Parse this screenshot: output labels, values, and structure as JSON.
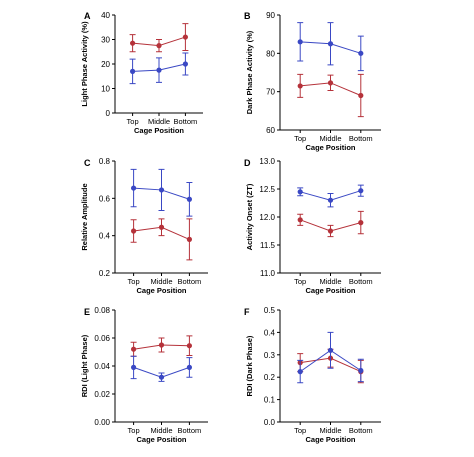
{
  "colors": {
    "red": "#b5323a",
    "blue": "#3a48c4"
  },
  "chart_data": [
    {
      "panel": "A",
      "type": "line",
      "categories": [
        "Top",
        "Middle",
        "Bottom"
      ],
      "xlabel": "Cage Position",
      "ylabel": "Light Phase Activity (%)",
      "ylim": [
        0,
        40
      ],
      "yticks": [
        0,
        10,
        20,
        30,
        40
      ],
      "ytick_labels": [
        "0",
        "10",
        "20",
        "30",
        "40"
      ],
      "series": [
        {
          "color": "red",
          "values": [
            28.5,
            27.5,
            31
          ],
          "err": [
            3.5,
            2.5,
            5.5
          ]
        },
        {
          "color": "blue",
          "values": [
            17,
            17.5,
            20
          ],
          "err": [
            5,
            5,
            4.5
          ]
        }
      ]
    },
    {
      "panel": "B",
      "type": "line",
      "categories": [
        "Top",
        "Middle",
        "Bottom"
      ],
      "xlabel": "Cage Position",
      "ylabel": "Dark Phase Activity (%)",
      "ylim": [
        60,
        90
      ],
      "yticks": [
        60,
        70,
        80,
        90
      ],
      "ytick_labels": [
        "60",
        "70",
        "80",
        "90"
      ],
      "series": [
        {
          "color": "red",
          "values": [
            71.5,
            72.3,
            69
          ],
          "err": [
            3,
            2,
            5.5
          ]
        },
        {
          "color": "blue",
          "values": [
            83,
            82.5,
            80
          ],
          "err": [
            5,
            5.5,
            4.5
          ]
        }
      ]
    },
    {
      "panel": "C",
      "type": "line",
      "categories": [
        "Top",
        "Middle",
        "Bottom"
      ],
      "xlabel": "Cage Position",
      "ylabel": "Relative Amplitude",
      "ylim": [
        0.2,
        0.8
      ],
      "yticks": [
        0.2,
        0.4,
        0.6,
        0.8
      ],
      "ytick_labels": [
        "0.2",
        "0.4",
        "0.6",
        "0.8"
      ],
      "series": [
        {
          "color": "red",
          "values": [
            0.425,
            0.445,
            0.38
          ],
          "err": [
            0.06,
            0.045,
            0.11
          ]
        },
        {
          "color": "blue",
          "values": [
            0.655,
            0.645,
            0.595
          ],
          "err": [
            0.1,
            0.11,
            0.09
          ]
        }
      ]
    },
    {
      "panel": "D",
      "type": "line",
      "categories": [
        "Top",
        "Middle",
        "Bottom"
      ],
      "xlabel": "Cage Position",
      "ylabel": "Activity Onset (ZT)",
      "ylim": [
        11,
        13
      ],
      "yticks": [
        11.0,
        11.5,
        12.0,
        12.5,
        13.0
      ],
      "ytick_labels": [
        "11.0",
        "11.5",
        "12.0",
        "12.5",
        "13.0"
      ],
      "series": [
        {
          "color": "red",
          "values": [
            11.95,
            11.75,
            11.9
          ],
          "err": [
            0.1,
            0.1,
            0.2
          ]
        },
        {
          "color": "blue",
          "values": [
            12.45,
            12.3,
            12.47
          ],
          "err": [
            0.07,
            0.12,
            0.1
          ]
        }
      ]
    },
    {
      "panel": "E",
      "type": "line",
      "categories": [
        "Top",
        "Middle",
        "Bottom"
      ],
      "xlabel": "Cage Position",
      "ylabel": "RDI (Light Phase)",
      "ylim": [
        0,
        0.08
      ],
      "yticks": [
        0,
        0.02,
        0.04,
        0.06,
        0.08
      ],
      "ytick_labels": [
        "0.00",
        "0.02",
        "0.04",
        "0.06",
        "0.08"
      ],
      "series": [
        {
          "color": "red",
          "values": [
            0.052,
            0.055,
            0.0545
          ],
          "err": [
            0.005,
            0.005,
            0.007
          ]
        },
        {
          "color": "blue",
          "values": [
            0.039,
            0.032,
            0.039
          ],
          "err": [
            0.008,
            0.003,
            0.007
          ]
        }
      ]
    },
    {
      "panel": "F",
      "type": "line",
      "categories": [
        "Top",
        "Middle",
        "Bottom"
      ],
      "xlabel": "Cage Position",
      "ylabel": "RDI (Dark  Phase)",
      "ylim": [
        0,
        0.5
      ],
      "yticks": [
        0,
        0.1,
        0.2,
        0.3,
        0.4,
        0.5
      ],
      "ytick_labels": [
        "0.0",
        "0.1",
        "0.2",
        "0.3",
        "0.4",
        "0.5"
      ],
      "series": [
        {
          "color": "red",
          "values": [
            0.265,
            0.285,
            0.225
          ],
          "err": [
            0.04,
            0.04,
            0.05
          ]
        },
        {
          "color": "blue",
          "values": [
            0.225,
            0.32,
            0.23
          ],
          "err": [
            0.05,
            0.08,
            0.05
          ]
        }
      ]
    }
  ]
}
